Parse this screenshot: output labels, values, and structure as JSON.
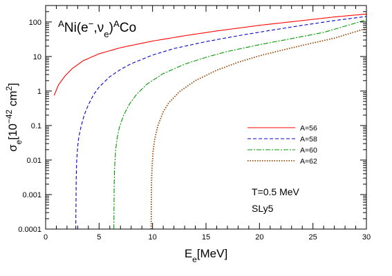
{
  "chart_data": {
    "type": "line",
    "title": {
      "parts": [
        {
          "text": "A",
          "sup": true
        },
        {
          "text": "Ni(e"
        },
        {
          "text": "−",
          "sup": true
        },
        {
          "text": ",ν"
        },
        {
          "text": "e",
          "sub": true
        },
        {
          "text": ")"
        },
        {
          "text": "A",
          "sup": true
        },
        {
          "text": "Co"
        }
      ]
    },
    "xlabel": {
      "base": "E",
      "sub": "e",
      "rest": "[MeV]"
    },
    "ylabel": {
      "base": "σ",
      "sub": "e",
      "rest": "[10",
      "sup": "−42",
      "rest2": " cm",
      "sup2": "2",
      "rest3": "]"
    },
    "xlim": [
      0,
      30
    ],
    "ylim": [
      0.0001,
      300
    ],
    "yscale": "log",
    "xticks": [
      0,
      5,
      10,
      15,
      20,
      25,
      30
    ],
    "xtick_labels": [
      "0",
      "5",
      "10",
      "15",
      "20",
      "25",
      "30"
    ],
    "yticks": [
      0.0001,
      0.001,
      0.01,
      0.1,
      1,
      10,
      100
    ],
    "ytick_labels": [
      "0.0001",
      "0.001",
      "0.01",
      "0.1",
      "1",
      "10",
      "100"
    ],
    "grid": false,
    "legend_position": "center-right",
    "annotations": [
      "T=0.5 MeV",
      "SLy5"
    ],
    "series": [
      {
        "name": "A=56",
        "color": "#ff0000",
        "style": "solid",
        "x": [
          0.8,
          1.2,
          1.8,
          2.5,
          3.5,
          5,
          7,
          10,
          13,
          16,
          20,
          24,
          27,
          30
        ],
        "y": [
          0.75,
          1.5,
          2.7,
          4.5,
          7.5,
          12,
          18,
          28,
          40,
          55,
          80,
          110,
          140,
          170
        ]
      },
      {
        "name": "A=58",
        "color": "#0000cc",
        "style": "dashed",
        "x": [
          2.82,
          2.86,
          2.9,
          3.0,
          3.1,
          3.3,
          3.6,
          4.0,
          4.5,
          5.0,
          6.0,
          7.0,
          8.0,
          10,
          12,
          15,
          18,
          21,
          24,
          27,
          30
        ],
        "y": [
          0.0001,
          0.003,
          0.009,
          0.025,
          0.045,
          0.09,
          0.2,
          0.4,
          0.8,
          1.3,
          2.6,
          4.2,
          6.2,
          11,
          17,
          27,
          40,
          57,
          80,
          110,
          145
        ]
      },
      {
        "name": "A=60",
        "color": "#009900",
        "style": "dashdot",
        "x": [
          6.38,
          6.41,
          6.45,
          6.55,
          6.7,
          6.9,
          7.3,
          7.8,
          8.5,
          9.5,
          11,
          13,
          15,
          17,
          20,
          23,
          26,
          30
        ],
        "y": [
          0.0001,
          0.002,
          0.006,
          0.02,
          0.045,
          0.09,
          0.2,
          0.4,
          0.8,
          1.6,
          3.2,
          6.0,
          9.5,
          14,
          22,
          33,
          50,
          115
        ]
      },
      {
        "name": "A=62",
        "color": "#994400",
        "style": "dotted",
        "x": [
          9.87,
          9.9,
          9.95,
          10.05,
          10.2,
          10.5,
          11,
          11.5,
          12.5,
          14,
          16,
          18,
          20,
          22,
          24,
          27,
          30
        ],
        "y": [
          0.0001,
          0.002,
          0.006,
          0.018,
          0.04,
          0.1,
          0.25,
          0.45,
          0.95,
          2.0,
          4.0,
          6.8,
          10.5,
          15,
          21,
          34,
          65
        ]
      }
    ]
  }
}
